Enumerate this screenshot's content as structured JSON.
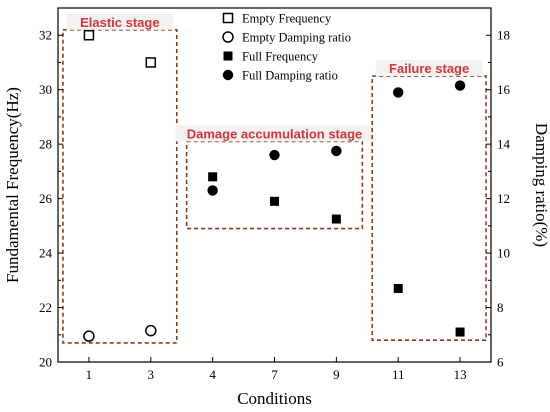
{
  "chart_data": {
    "type": "scatter",
    "xlabel": "Conditions",
    "ylabel_left": "Fundamental Frequency(Hz)",
    "ylabel_right": "Damping ratio(%)",
    "categories": [
      "1",
      "3",
      "4",
      "7",
      "9",
      "11",
      "13"
    ],
    "ylim_left": [
      20,
      33
    ],
    "yticks_left": [
      20,
      22,
      24,
      26,
      28,
      30,
      32
    ],
    "ylim_right": [
      6,
      19
    ],
    "yticks_right": [
      6,
      8,
      10,
      12,
      14,
      16,
      18
    ],
    "legend_position": "top-center",
    "series": [
      {
        "name": "Empty Frequency",
        "axis": "left",
        "marker": "open-square",
        "color": "#000000",
        "points": [
          {
            "x": "1",
            "y": 32.0
          },
          {
            "x": "3",
            "y": 31.0
          }
        ]
      },
      {
        "name": "Empty Damping ratio",
        "axis": "right",
        "marker": "open-circle",
        "color": "#000000",
        "points": [
          {
            "x": "1",
            "y": 6.95
          },
          {
            "x": "3",
            "y": 7.15
          }
        ]
      },
      {
        "name": "Full Frequency",
        "axis": "left",
        "marker": "filled-square",
        "color": "#000000",
        "points": [
          {
            "x": "4",
            "y": 26.8
          },
          {
            "x": "7",
            "y": 25.9
          },
          {
            "x": "9",
            "y": 25.25
          },
          {
            "x": "11",
            "y": 22.7
          },
          {
            "x": "13",
            "y": 21.1
          }
        ]
      },
      {
        "name": "Full Damping ratio",
        "axis": "right",
        "marker": "filled-circle",
        "color": "#000000",
        "points": [
          {
            "x": "4",
            "y": 12.3
          },
          {
            "x": "7",
            "y": 13.6
          },
          {
            "x": "9",
            "y": 13.75
          },
          {
            "x": "11",
            "y": 15.9
          },
          {
            "x": "13",
            "y": 16.15
          }
        ]
      }
    ],
    "stages": [
      {
        "label": "Elastic stage",
        "from": "1",
        "to": "3",
        "ymin_left": 20.7,
        "ymax_left": 32.2
      },
      {
        "label": "Damage accumulation stage",
        "from": "4",
        "to": "9",
        "ymin_left": 24.9,
        "ymax_left": 28.1
      },
      {
        "label": "Failure stage",
        "from": "11",
        "to": "13",
        "ymin_left": 20.8,
        "ymax_left": 30.5
      }
    ],
    "stage_color": "#8b3a1a",
    "stage_label_color": "#d8343b"
  }
}
